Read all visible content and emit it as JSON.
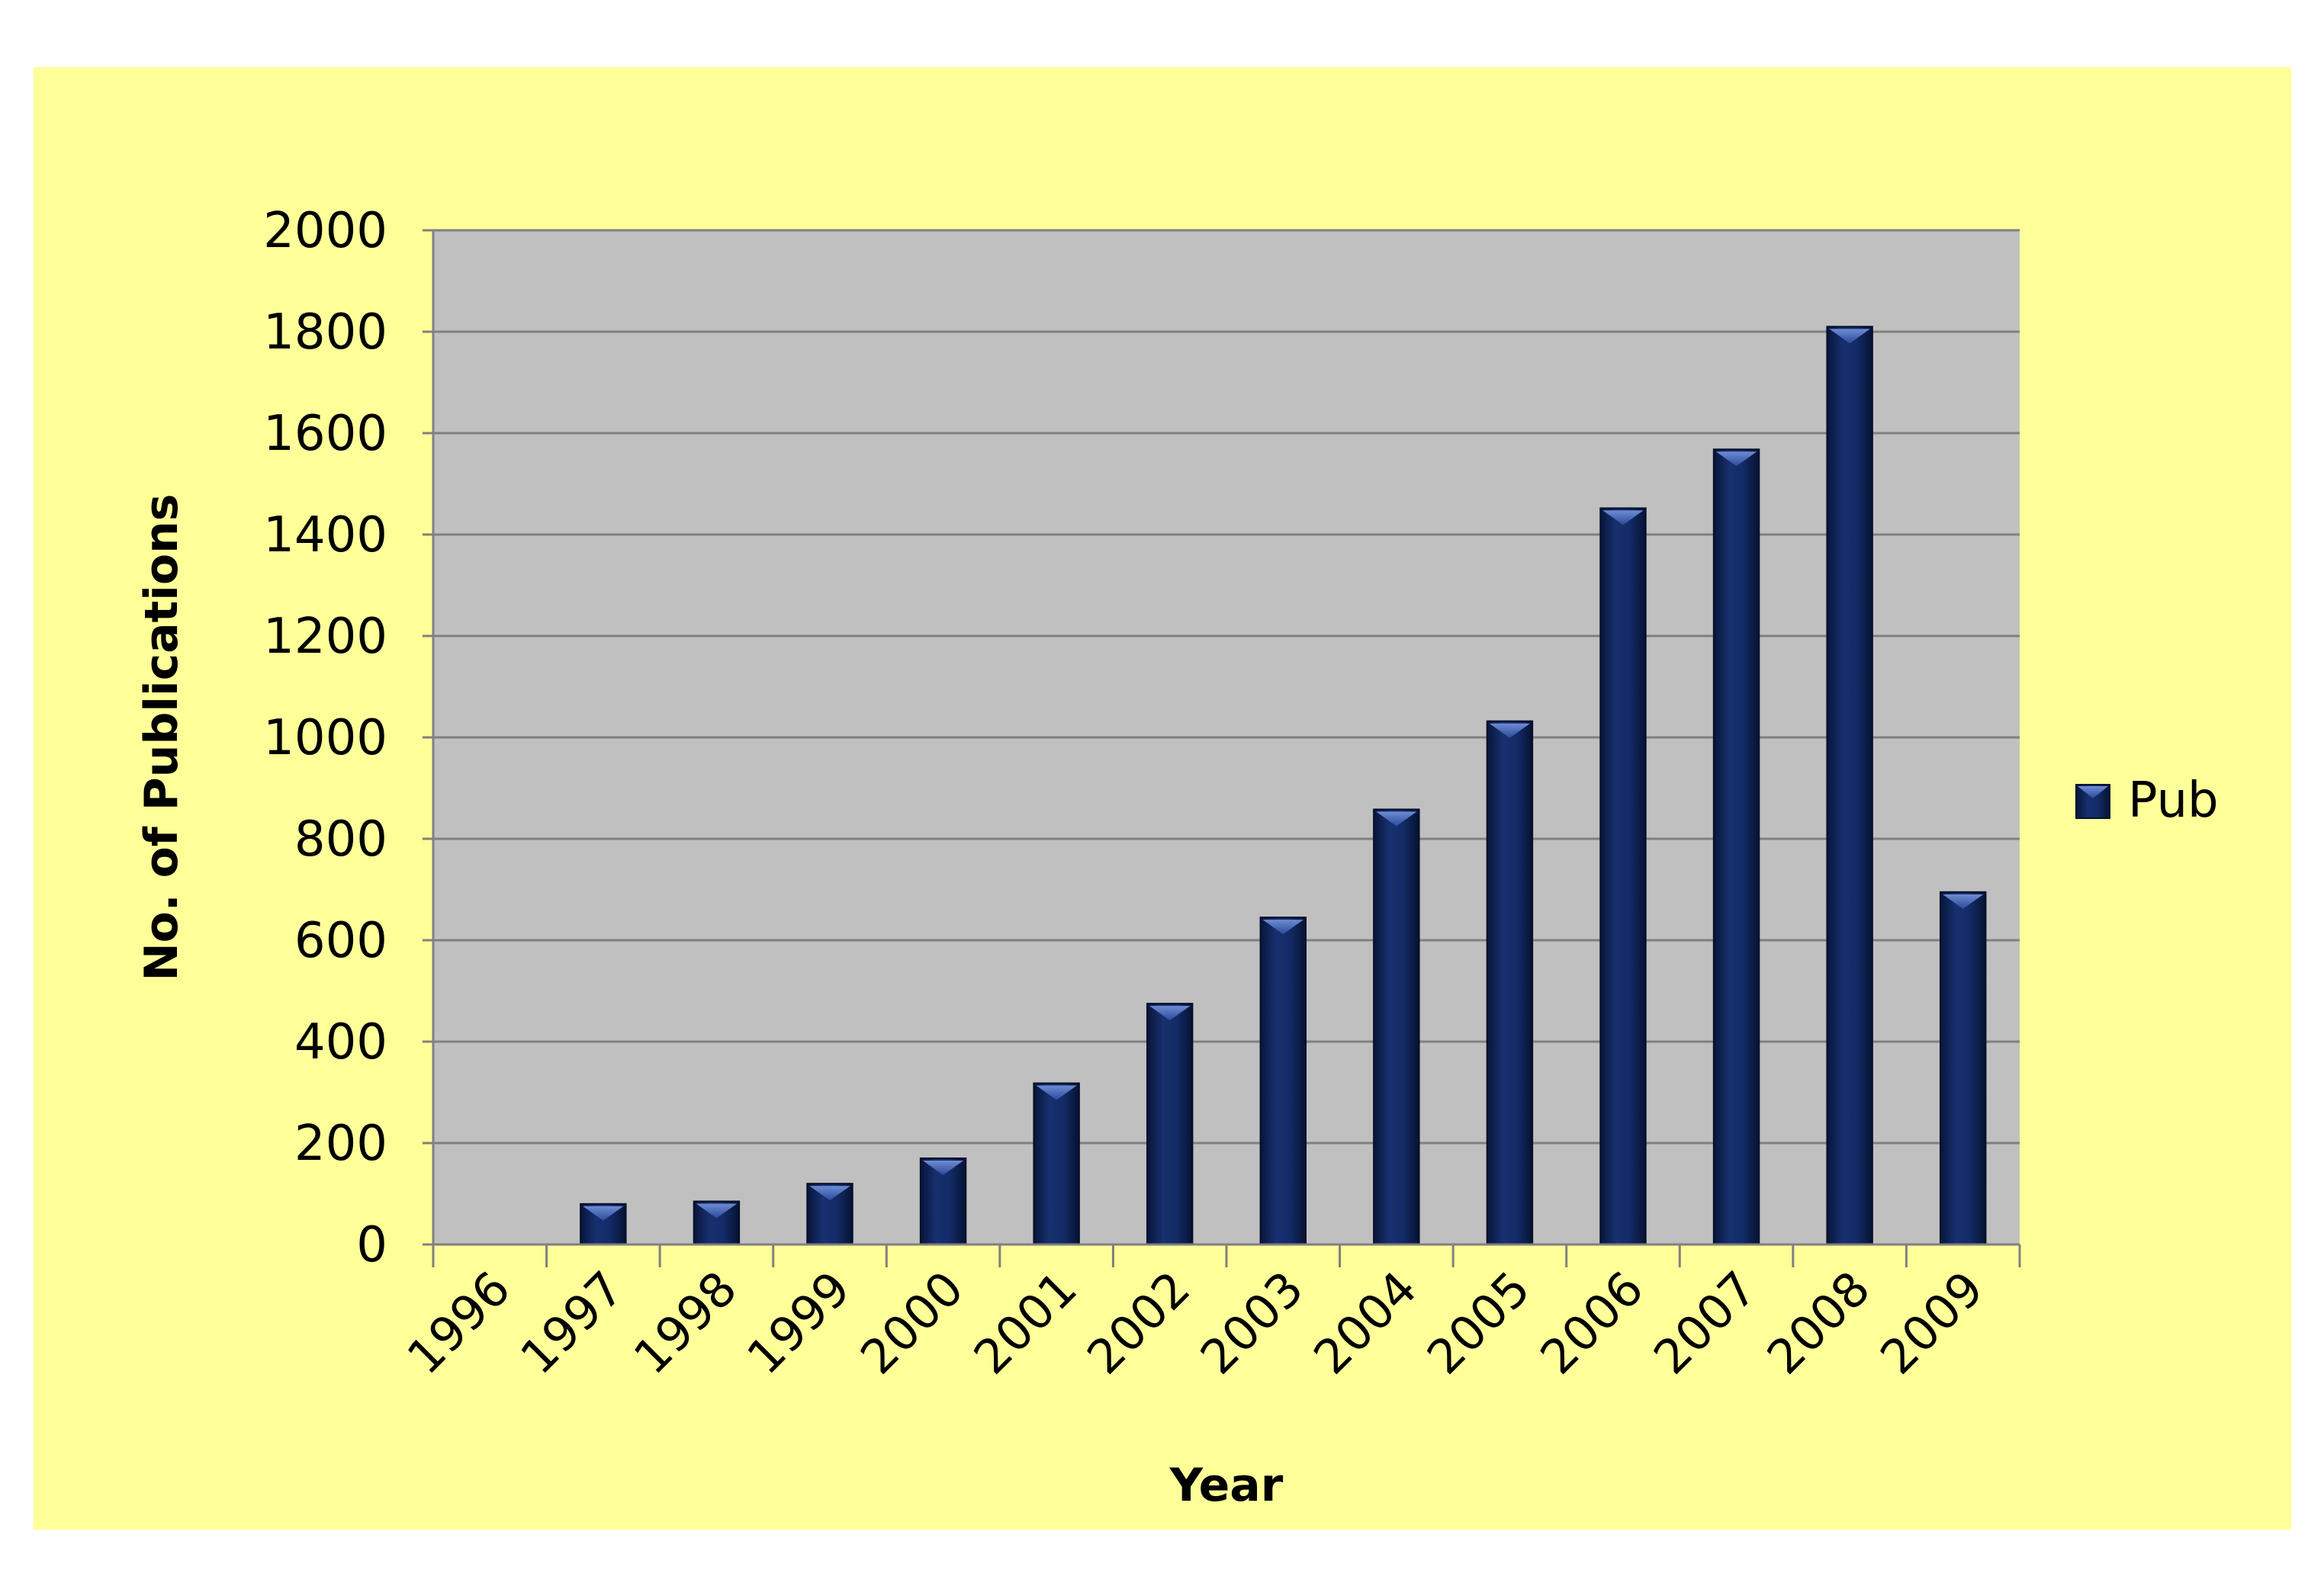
{
  "chart_data": {
    "type": "bar",
    "title": "",
    "xlabel": "Year",
    "ylabel": "No. of Publications",
    "categories": [
      "1996",
      "1997",
      "1998",
      "1999",
      "2000",
      "2001",
      "2002",
      "2003",
      "2004",
      "2005",
      "2006",
      "2007",
      "2008",
      "2009"
    ],
    "series": [
      {
        "name": "Pub",
        "color": "#0F2660",
        "values": [
          0,
          80,
          85,
          120,
          170,
          318,
          475,
          645,
          858,
          1032,
          1452,
          1568,
          1810,
          695
        ]
      }
    ],
    "yticks": [
      "0",
      "200",
      "400",
      "600",
      "800",
      "1000",
      "1200",
      "1400",
      "1600",
      "1800",
      "2000"
    ],
    "ylim": [
      0,
      2000
    ],
    "grid": true,
    "legend_position": "right",
    "colors": {
      "outer_background": "#FFFF99",
      "plot_background": "#C0C0C0",
      "gridline": "#808080",
      "bar": "#0F2660"
    }
  }
}
